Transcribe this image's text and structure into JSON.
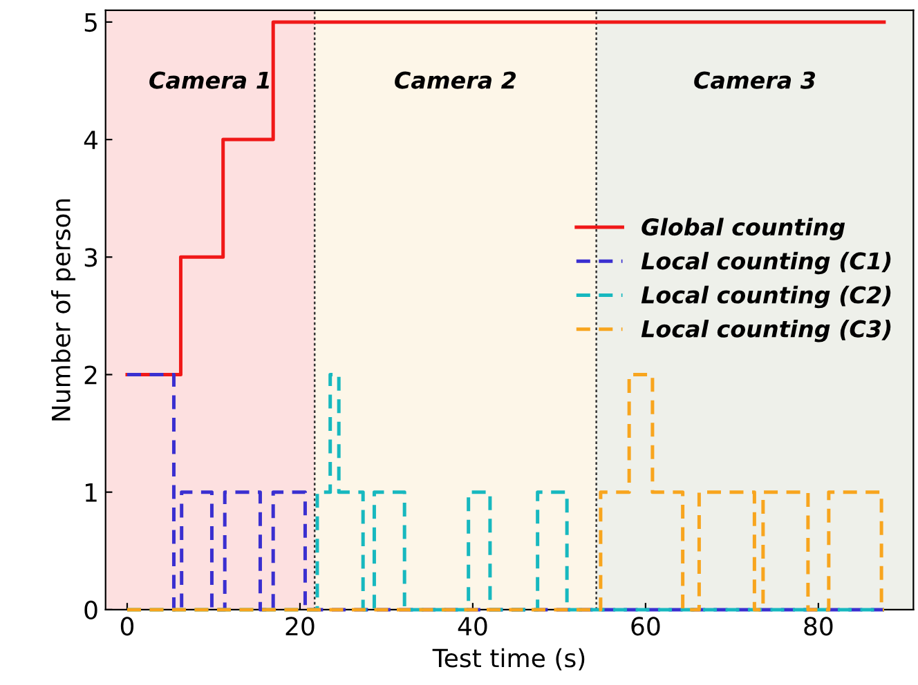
{
  "chart_data": {
    "type": "step",
    "xlabel": "Test time (s)",
    "ylabel": "Number of person",
    "xlim": [
      -2.5,
      91
    ],
    "ylim": [
      0,
      5.1
    ],
    "xticks": [
      0,
      20,
      40,
      60,
      80
    ],
    "yticks": [
      0,
      1,
      2,
      3,
      4,
      5
    ],
    "grid": false,
    "legend": "right",
    "marker": "none",
    "bands": [
      {
        "axis": "x",
        "from": -2.5,
        "to": 21.7,
        "label": "Camera 1",
        "color": "#fde0e0"
      },
      {
        "axis": "x",
        "from": 21.7,
        "to": 54.3,
        "label": "Camera 2",
        "color": "#fdf6e8"
      },
      {
        "axis": "x",
        "from": 54.3,
        "to": 91,
        "label": "Camera 3",
        "color": "#eef0ea"
      }
    ],
    "ref_lines": [
      {
        "axis": "x",
        "value": 21.7,
        "color": "#333333",
        "line_style": "dotted"
      },
      {
        "axis": "x",
        "value": 54.3,
        "color": "#333333",
        "line_style": "dotted"
      }
    ],
    "series": [
      {
        "name": "Global counting",
        "color": "#f01818",
        "line_style": "solid",
        "x": [
          0,
          6.2,
          11.1,
          16.9,
          87.6
        ],
        "values": [
          2,
          3,
          4,
          5,
          5
        ]
      },
      {
        "name": "Local counting (C1)",
        "color": "#3a2fd0",
        "line_style": "dashed",
        "x": [
          0,
          5.4,
          6.3,
          9.8,
          11.3,
          15.4,
          16.9,
          20.6,
          87.6
        ],
        "values": [
          2,
          0,
          1,
          0,
          1,
          0,
          1,
          0,
          0
        ]
      },
      {
        "name": "Local counting (C2)",
        "color": "#17b8bf",
        "line_style": "dashed",
        "x": [
          0,
          22.0,
          23.5,
          24.5,
          27.3,
          28.6,
          32.1,
          39.5,
          42.0,
          47.5,
          50.9,
          87.6
        ],
        "values": [
          0,
          1,
          2,
          1,
          0,
          1,
          0,
          1,
          0,
          1,
          0,
          0
        ]
      },
      {
        "name": "Local counting (C3)",
        "color": "#f8a51e",
        "line_style": "dashed",
        "x": [
          0,
          54.8,
          58.1,
          60.8,
          64.3,
          66.2,
          72.6,
          73.6,
          78.8,
          81.2,
          87.3,
          87.6
        ],
        "values": [
          0,
          1,
          2,
          1,
          0,
          1,
          0,
          1,
          0,
          1,
          0,
          0
        ]
      }
    ]
  }
}
